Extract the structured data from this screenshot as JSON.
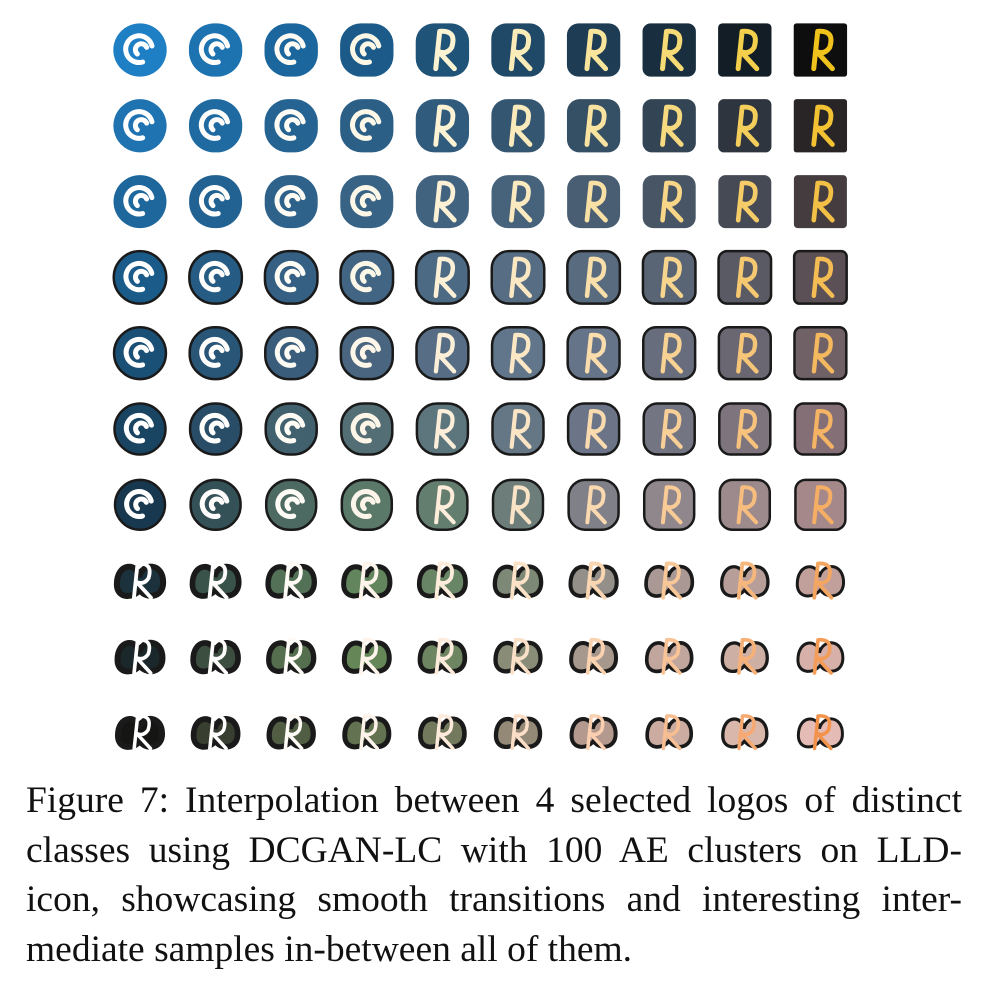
{
  "figure": {
    "caption_lines": [
      "Figure 7: Interpolation between 4 selected logos of distinct",
      "classes using DCGAN-LC with 100 AE clusters on LLD-",
      "icon, showcasing smooth transitions and interesting inter-",
      "mediate samples in-between all of them."
    ],
    "grid": {
      "rows": 10,
      "cols": 10,
      "corner_logos": {
        "top_left": "blue circular logo with white swirl",
        "top_right": "black square with yellow letter R",
        "bottom_left": "black abstract shape",
        "bottom_right": "pink rounded shape with dark stroke"
      },
      "corner_colors": {
        "top_left_bg": "#1f7fc4",
        "top_right_bg": "#0e0e0e",
        "bottom_left_bg": "#141414",
        "bottom_right_bg": "#e8b2b8",
        "top_right_glyph": "#f0c21c",
        "stroke": "#1a1a1a",
        "white": "#ffffff"
      }
    }
  }
}
